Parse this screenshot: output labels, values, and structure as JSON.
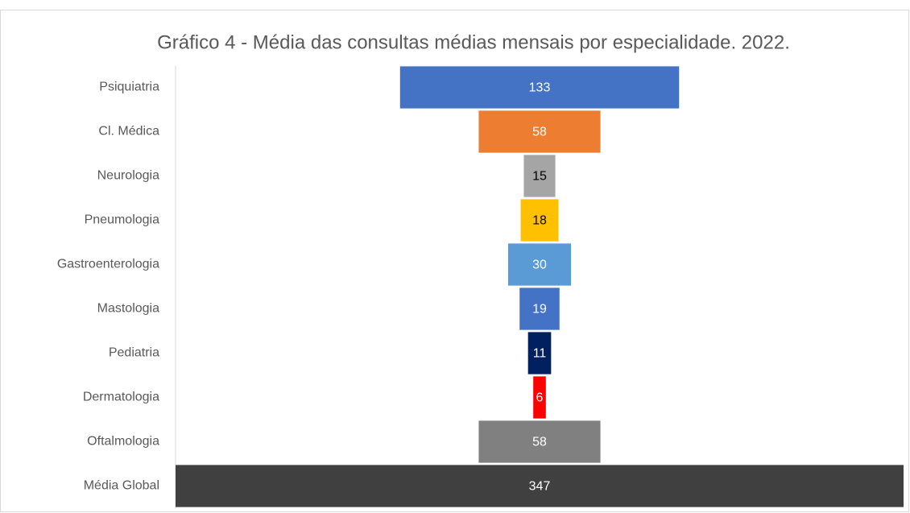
{
  "chart_data": {
    "type": "funnel",
    "title": "Gráfico 4 - Média das consultas médias mensais por especialidade. 2022.",
    "categories": [
      "Psiquiatria",
      "Cl. Médica",
      "Neurologia",
      "Pneumologia",
      "Gastroenterologia",
      "Mastologia",
      "Pediatria",
      "Dermatologia",
      "Oftalmologia",
      "Média Global"
    ],
    "values": [
      133,
      58,
      15,
      18,
      30,
      19,
      11,
      6,
      58,
      347
    ],
    "colors": [
      "#4472c4",
      "#ed7d31",
      "#a5a5a5",
      "#ffc000",
      "#5b9bd5",
      "#4472c4",
      "#002060",
      "#ff0000",
      "#808080",
      "#404040"
    ]
  }
}
